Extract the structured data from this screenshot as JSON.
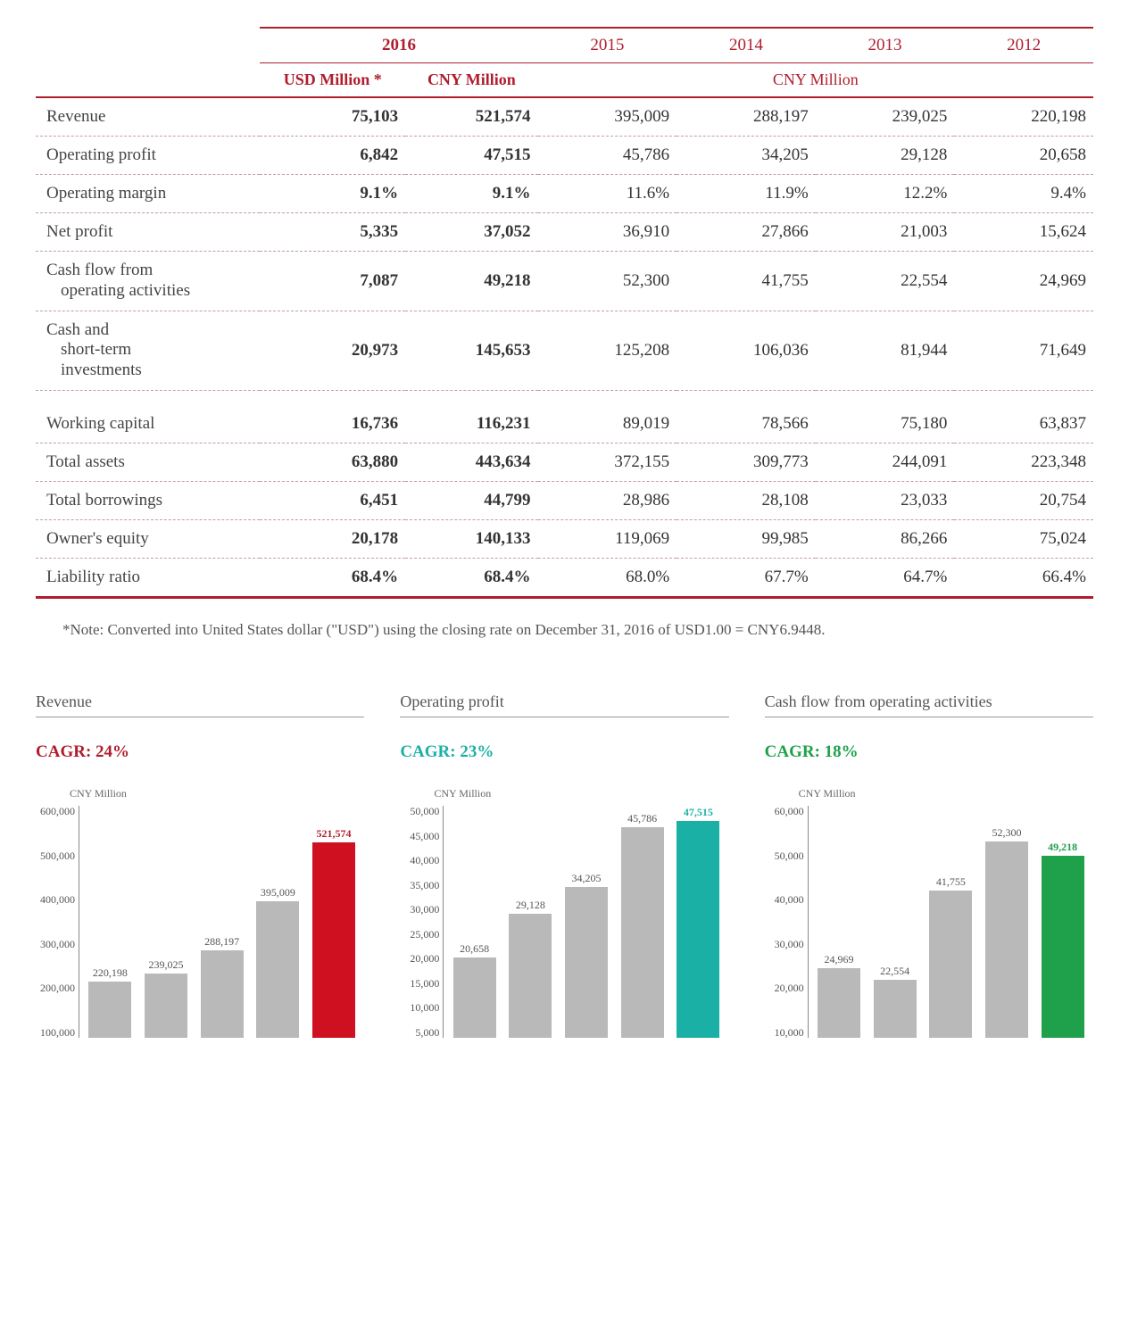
{
  "colors": {
    "brand_red": "#b01e2e",
    "teal": "#1bb0a6",
    "green": "#1fa04a",
    "bar_gray": "#b9b9b9",
    "text": "#444444"
  },
  "table": {
    "years": [
      "2016",
      "2015",
      "2014",
      "2013",
      "2012"
    ],
    "unit_2016_usd": "USD Million *",
    "unit_2016_cny": "CNY Million",
    "unit_other": "CNY Million",
    "rows": [
      {
        "label": "Revenue",
        "usd": "75,103",
        "cny16": "521,574",
        "v15": "395,009",
        "v14": "288,197",
        "v13": "239,025",
        "v12": "220,198"
      },
      {
        "label": "Operating profit",
        "usd": "6,842",
        "cny16": "47,515",
        "v15": "45,786",
        "v14": "34,205",
        "v13": "29,128",
        "v12": "20,658"
      },
      {
        "label": "Operating margin",
        "usd": "9.1%",
        "cny16": "9.1%",
        "v15": "11.6%",
        "v14": "11.9%",
        "v13": "12.2%",
        "v12": "9.4%"
      },
      {
        "label": "Net profit",
        "usd": "5,335",
        "cny16": "37,052",
        "v15": "36,910",
        "v14": "27,866",
        "v13": "21,003",
        "v12": "15,624"
      },
      {
        "label": "Cash flow from\n  operating activities",
        "multiline": true,
        "usd": "7,087",
        "cny16": "49,218",
        "v15": "52,300",
        "v14": "41,755",
        "v13": "22,554",
        "v12": "24,969"
      },
      {
        "label": "Cash and\n  short-term\n  investments",
        "multiline": true,
        "usd": "20,973",
        "cny16": "145,653",
        "v15": "125,208",
        "v14": "106,036",
        "v13": "81,944",
        "v12": "71,649"
      },
      {
        "label": "Working capital",
        "usd": "16,736",
        "cny16": "116,231",
        "v15": "89,019",
        "v14": "78,566",
        "v13": "75,180",
        "v12": "63,837",
        "gap_before": true
      },
      {
        "label": "Total assets",
        "usd": "63,880",
        "cny16": "443,634",
        "v15": "372,155",
        "v14": "309,773",
        "v13": "244,091",
        "v12": "223,348"
      },
      {
        "label": "Total borrowings",
        "usd": "6,451",
        "cny16": "44,799",
        "v15": "28,986",
        "v14": "28,108",
        "v13": "23,033",
        "v12": "20,754"
      },
      {
        "label": "Owner's equity",
        "usd": "20,178",
        "cny16": "140,133",
        "v15": "119,069",
        "v14": "99,985",
        "v13": "86,266",
        "v12": "75,024"
      },
      {
        "label": "Liability ratio",
        "usd": "68.4%",
        "cny16": "68.4%",
        "v15": "68.0%",
        "v14": "67.7%",
        "v13": "64.7%",
        "v12": "66.4%"
      }
    ]
  },
  "footnote": "*Note: Converted into United States dollar (\"USD\") using the closing rate on December 31, 2016 of USD1.00 = CNY6.9448.",
  "charts": [
    {
      "title": "Revenue",
      "cagr_label": "CAGR:  24%",
      "cagr_color": "#b01e2e",
      "axis_unit": "CNY Million",
      "y_min": 100000,
      "y_max": 600000,
      "y_ticks": [
        "600,000",
        "500,000",
        "400,000",
        "300,000",
        "200,000",
        "100,000"
      ],
      "bars": [
        {
          "label": "220,198",
          "value": 220198,
          "color": "#b9b9b9"
        },
        {
          "label": "239,025",
          "value": 239025,
          "color": "#b9b9b9"
        },
        {
          "label": "288,197",
          "value": 288197,
          "color": "#b9b9b9"
        },
        {
          "label": "395,009",
          "value": 395009,
          "color": "#b9b9b9"
        },
        {
          "label": "521,574",
          "value": 521574,
          "color": "#cf1020",
          "highlight": true
        }
      ]
    },
    {
      "title": "Operating profit",
      "cagr_label": "CAGR:  23%",
      "cagr_color": "#1bb0a6",
      "axis_unit": "CNY Million",
      "y_min": 5000,
      "y_max": 50000,
      "y_ticks": [
        "50,000",
        "45,000",
        "40,000",
        "35,000",
        "30,000",
        "25,000",
        "20,000",
        "15,000",
        "10,000",
        "5,000"
      ],
      "bars": [
        {
          "label": "20,658",
          "value": 20658,
          "color": "#b9b9b9"
        },
        {
          "label": "29,128",
          "value": 29128,
          "color": "#b9b9b9"
        },
        {
          "label": "34,205",
          "value": 34205,
          "color": "#b9b9b9"
        },
        {
          "label": "45,786",
          "value": 45786,
          "color": "#b9b9b9"
        },
        {
          "label": "47,515",
          "value": 47515,
          "color": "#1bb0a6",
          "highlight": true
        }
      ]
    },
    {
      "title": "Cash flow from operating activities",
      "cagr_label": "CAGR:  18%",
      "cagr_color": "#1fa04a",
      "axis_unit": "CNY Million",
      "y_min": 10000,
      "y_max": 60000,
      "y_ticks": [
        "60,000",
        "50,000",
        "40,000",
        "30,000",
        "20,000",
        "10,000"
      ],
      "bars": [
        {
          "label": "24,969",
          "value": 24969,
          "color": "#b9b9b9"
        },
        {
          "label": "22,554",
          "value": 22554,
          "color": "#b9b9b9"
        },
        {
          "label": "41,755",
          "value": 41755,
          "color": "#b9b9b9"
        },
        {
          "label": "52,300",
          "value": 52300,
          "color": "#b9b9b9"
        },
        {
          "label": "49,218",
          "value": 49218,
          "color": "#1fa04a",
          "highlight": true
        }
      ]
    }
  ]
}
